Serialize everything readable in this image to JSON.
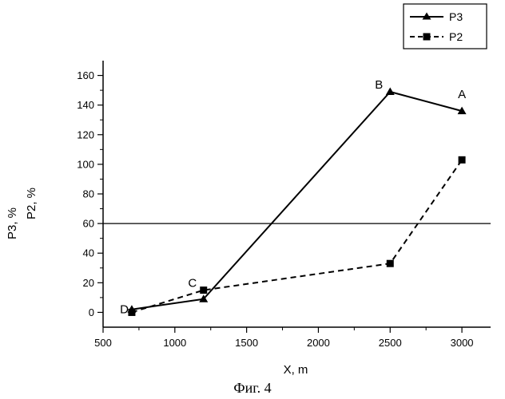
{
  "chart_data": {
    "type": "line",
    "xlabel": "X, m",
    "ylabel_lines": [
      "P3, %",
      "P2, %"
    ],
    "caption": "Фиг. 4",
    "xlim": [
      500,
      3200
    ],
    "ylim": [
      -10,
      170
    ],
    "x_ticks": [
      500,
      1000,
      1500,
      2000,
      2500,
      3000
    ],
    "y_ticks": [
      0,
      20,
      40,
      60,
      80,
      100,
      120,
      140,
      160
    ],
    "reference_line": 60,
    "legend_position": "top-right",
    "series": [
      {
        "name": "P3",
        "style": "solid",
        "marker": "triangle",
        "x": [
          700,
          1200,
          2500,
          3000
        ],
        "y": [
          2,
          9,
          149,
          136
        ]
      },
      {
        "name": "P2",
        "style": "dashed",
        "marker": "square",
        "x": [
          700,
          1200,
          2500,
          3000
        ],
        "y": [
          0,
          15,
          33,
          103
        ]
      }
    ],
    "point_labels": [
      {
        "text": "D",
        "x": 700,
        "y": 2,
        "side": "left"
      },
      {
        "text": "C",
        "x": 1200,
        "y": 15,
        "side": "upper-left"
      },
      {
        "text": "B",
        "x": 2500,
        "y": 149,
        "side": "upper-left"
      },
      {
        "text": "A",
        "x": 3000,
        "y": 136,
        "side": "above"
      }
    ]
  }
}
